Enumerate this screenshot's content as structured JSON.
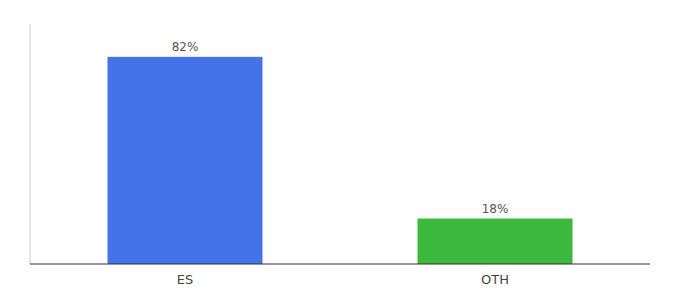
{
  "chart_data": {
    "type": "bar",
    "categories": [
      "ES",
      "OTH"
    ],
    "values": [
      82,
      18
    ],
    "value_labels": [
      "82%",
      "18%"
    ],
    "colors": [
      "#4472e8",
      "#3cb83c"
    ],
    "ylim": [
      0,
      95
    ],
    "data_labels": true,
    "tick_labels": "x"
  }
}
